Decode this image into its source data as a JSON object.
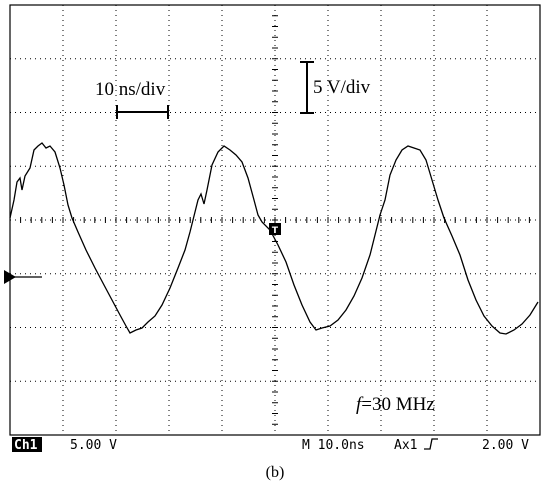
{
  "annotations": {
    "time_scale": "10 ns/div",
    "volt_scale": "5 V/div",
    "frequency": {
      "symbol": "f",
      "text": "=30 MHz"
    }
  },
  "status_bar": {
    "channel": "Ch1",
    "channel_scale": "5.00 V",
    "timebase": "M 10.0ns",
    "trigger_source": "Ax1",
    "trigger_level": "2.00 V"
  },
  "caption": "(b)"
}
